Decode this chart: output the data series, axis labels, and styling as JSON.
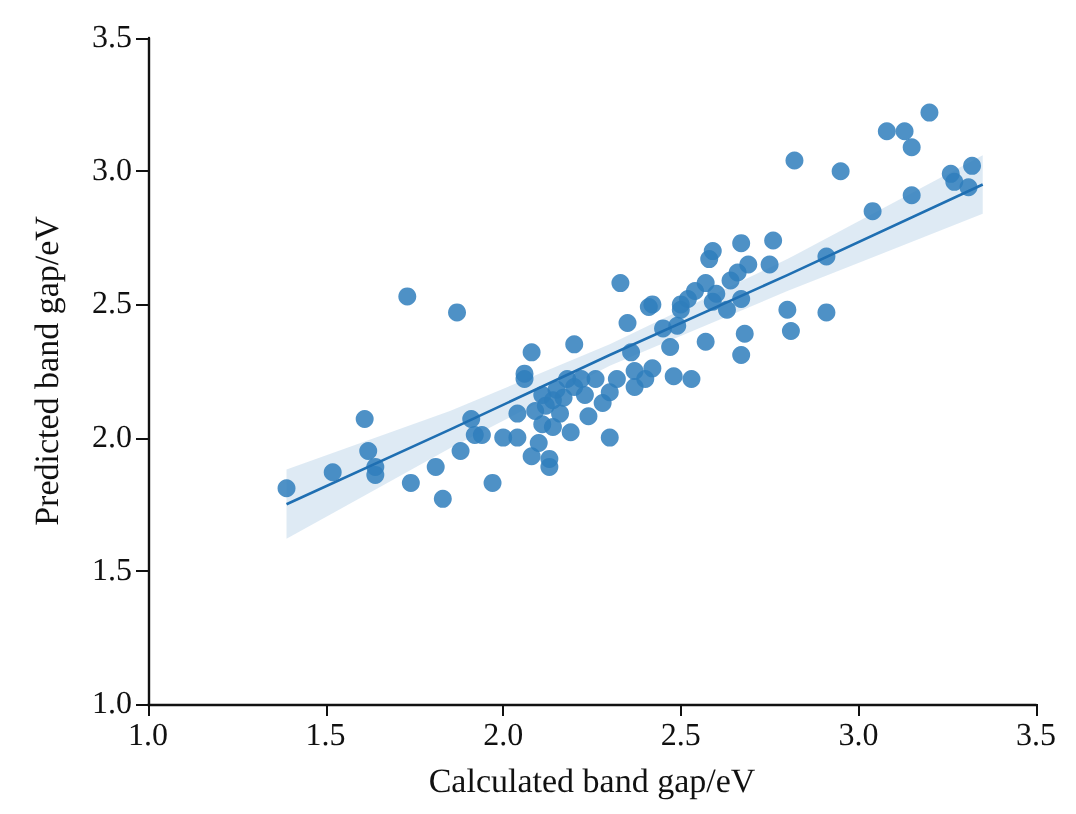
{
  "chart_data": {
    "type": "scatter",
    "xlabel": "Calculated band gap/eV",
    "ylabel": "Predicted band gap/eV",
    "xlim": [
      1.0,
      3.5
    ],
    "ylim": [
      1.0,
      3.5
    ],
    "xticks": [
      {
        "value": 1.0,
        "label": "1.0"
      },
      {
        "value": 1.5,
        "label": "1.5"
      },
      {
        "value": 2.0,
        "label": "2.0"
      },
      {
        "value": 2.5,
        "label": "2.5"
      },
      {
        "value": 3.0,
        "label": "3.0"
      },
      {
        "value": 3.5,
        "label": "3.5"
      }
    ],
    "yticks": [
      {
        "value": 1.0,
        "label": "1.0"
      },
      {
        "value": 1.5,
        "label": "1.5"
      },
      {
        "value": 2.0,
        "label": "2.0"
      },
      {
        "value": 2.5,
        "label": "2.5"
      },
      {
        "value": 3.0,
        "label": "3.0"
      },
      {
        "value": 3.5,
        "label": "3.5"
      }
    ],
    "grid": false,
    "series": [
      {
        "marker": "circle",
        "color": "#2f7ebc",
        "x": [
          1.39,
          1.52,
          1.61,
          1.62,
          1.64,
          1.64,
          1.73,
          1.74,
          1.81,
          1.83,
          1.87,
          1.88,
          1.91,
          1.92,
          1.94,
          1.97,
          2.0,
          2.04,
          2.04,
          2.06,
          2.06,
          2.08,
          2.08,
          2.09,
          2.1,
          2.11,
          2.13,
          2.13,
          2.14,
          2.15,
          2.16,
          2.18,
          2.19,
          2.2,
          2.2,
          2.22,
          2.23,
          2.24,
          2.26,
          2.28,
          2.3,
          2.3,
          2.32,
          2.33,
          2.35,
          2.36,
          2.37,
          2.37,
          2.4,
          2.41,
          2.42,
          2.42,
          2.45,
          2.47,
          2.48,
          2.49,
          2.5,
          2.5,
          2.52,
          2.53,
          2.54,
          2.57,
          2.58,
          2.59,
          2.59,
          2.6,
          2.63,
          2.64,
          2.66,
          2.67,
          2.67,
          2.68,
          2.67,
          2.69,
          2.75,
          2.76,
          2.8,
          2.81,
          2.82,
          2.91,
          2.91,
          2.95,
          3.04,
          3.08,
          3.13,
          3.15,
          3.2,
          3.15,
          3.26,
          3.27,
          3.31,
          3.32,
          2.12,
          2.17,
          2.14,
          2.11,
          2.57
        ],
        "values": [
          1.81,
          1.87,
          2.07,
          1.95,
          1.89,
          1.86,
          2.53,
          1.83,
          1.89,
          1.77,
          2.47,
          1.95,
          2.07,
          2.01,
          2.01,
          1.83,
          2.0,
          2.0,
          2.09,
          2.22,
          2.24,
          2.32,
          1.93,
          2.1,
          1.98,
          2.05,
          1.89,
          1.92,
          2.14,
          2.18,
          2.09,
          2.22,
          2.02,
          2.35,
          2.19,
          2.22,
          2.16,
          2.08,
          2.22,
          2.13,
          2.0,
          2.17,
          2.22,
          2.58,
          2.43,
          2.32,
          2.25,
          2.19,
          2.22,
          2.49,
          2.5,
          2.26,
          2.41,
          2.34,
          2.23,
          2.42,
          2.48,
          2.5,
          2.52,
          2.22,
          2.55,
          2.58,
          2.67,
          2.7,
          2.51,
          2.54,
          2.48,
          2.59,
          2.62,
          2.73,
          2.52,
          2.39,
          2.31,
          2.65,
          2.65,
          2.74,
          2.48,
          2.4,
          3.04,
          2.47,
          2.68,
          3.0,
          2.85,
          3.15,
          3.15,
          3.09,
          3.22,
          2.91,
          2.99,
          2.96,
          2.94,
          3.02,
          2.12,
          2.15,
          2.04,
          2.16,
          2.36
        ]
      },
      {
        "type": "line",
        "marker": "none",
        "color": "#1f6fb2",
        "x": [
          1.39,
          1.85,
          2.3,
          2.8,
          3.35
        ],
        "values": [
          1.75,
          2.03,
          2.31,
          2.61,
          2.95
        ],
        "lower": [
          1.62,
          1.96,
          2.27,
          2.55,
          2.84
        ],
        "upper": [
          1.88,
          2.1,
          2.35,
          2.67,
          3.06
        ]
      }
    ]
  }
}
